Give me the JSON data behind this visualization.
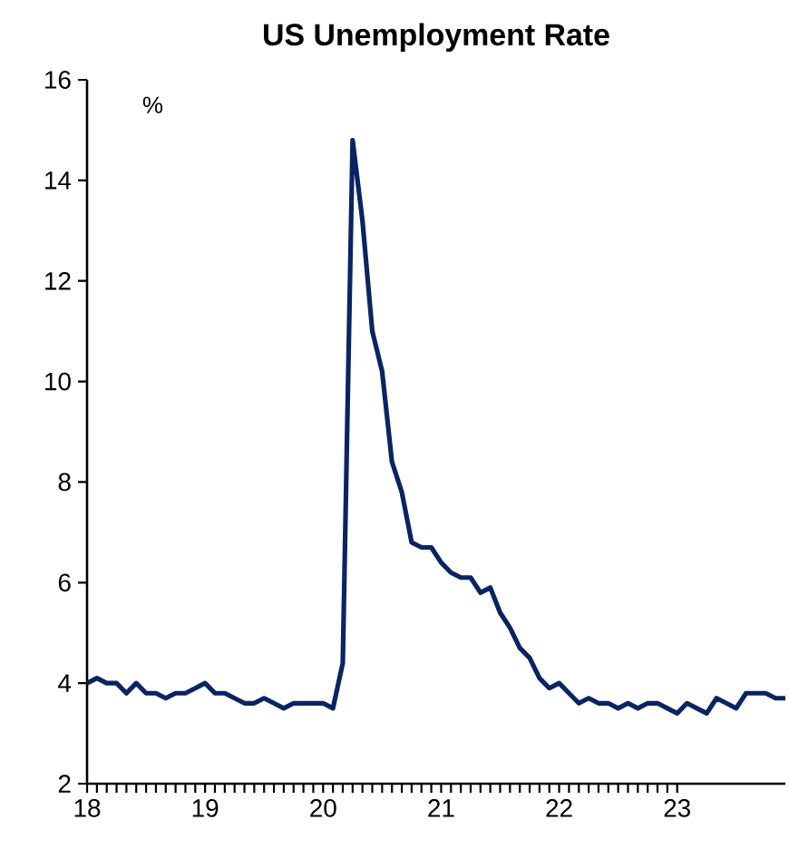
{
  "chart_data": {
    "type": "line",
    "title": "US Unemployment Rate",
    "ylabel": "%",
    "x": [
      "2018-01",
      "2018-02",
      "2018-03",
      "2018-04",
      "2018-05",
      "2018-06",
      "2018-07",
      "2018-08",
      "2018-09",
      "2018-10",
      "2018-11",
      "2018-12",
      "2019-01",
      "2019-02",
      "2019-03",
      "2019-04",
      "2019-05",
      "2019-06",
      "2019-07",
      "2019-08",
      "2019-09",
      "2019-10",
      "2019-11",
      "2019-12",
      "2020-01",
      "2020-02",
      "2020-03",
      "2020-04",
      "2020-05",
      "2020-06",
      "2020-07",
      "2020-08",
      "2020-09",
      "2020-10",
      "2020-11",
      "2020-12",
      "2021-01",
      "2021-02",
      "2021-03",
      "2021-04",
      "2021-05",
      "2021-06",
      "2021-07",
      "2021-08",
      "2021-09",
      "2021-10",
      "2021-11",
      "2021-12",
      "2022-01",
      "2022-02",
      "2022-03",
      "2022-04",
      "2022-05",
      "2022-06",
      "2022-07",
      "2022-08",
      "2022-09",
      "2022-10",
      "2022-11",
      "2022-12",
      "2023-01",
      "2023-02",
      "2023-03",
      "2023-04",
      "2023-05",
      "2023-06",
      "2023-07",
      "2023-08",
      "2023-09",
      "2023-10",
      "2023-11",
      "2023-12"
    ],
    "series": [
      {
        "color": "#0a2463",
        "values": [
          4.0,
          4.1,
          4.0,
          4.0,
          3.8,
          4.0,
          3.8,
          3.8,
          3.7,
          3.8,
          3.8,
          3.9,
          4.0,
          3.8,
          3.8,
          3.7,
          3.6,
          3.6,
          3.7,
          3.6,
          3.5,
          3.6,
          3.6,
          3.6,
          3.6,
          3.5,
          4.4,
          14.8,
          13.2,
          11.0,
          10.2,
          8.4,
          7.8,
          6.8,
          6.7,
          6.7,
          6.4,
          6.2,
          6.1,
          6.1,
          5.8,
          5.9,
          5.4,
          5.1,
          4.7,
          4.5,
          4.1,
          3.9,
          4.0,
          3.8,
          3.6,
          3.7,
          3.6,
          3.6,
          3.5,
          3.6,
          3.5,
          3.6,
          3.6,
          3.5,
          3.4,
          3.6,
          3.5,
          3.4,
          3.7,
          3.6,
          3.5,
          3.8,
          3.8,
          3.8,
          3.7,
          3.7
        ]
      }
    ],
    "xlim": [
      "2018-01",
      "2023-12"
    ],
    "xticks": [
      {
        "value": "2018-01",
        "label": "18"
      },
      {
        "value": "2019-01",
        "label": "19"
      },
      {
        "value": "2020-01",
        "label": "20"
      },
      {
        "value": "2021-01",
        "label": "21"
      },
      {
        "value": "2022-01",
        "label": "22"
      },
      {
        "value": "2023-01",
        "label": "23"
      }
    ],
    "ylim": [
      2,
      16
    ],
    "yticks": [
      2,
      4,
      6,
      8,
      10,
      12,
      14,
      16
    ],
    "grid": false,
    "marker": "none",
    "line_style": "solid"
  }
}
